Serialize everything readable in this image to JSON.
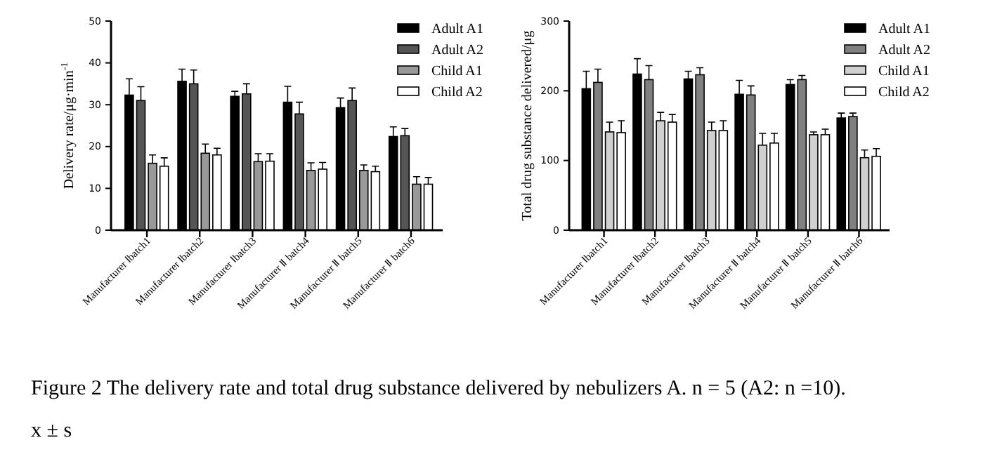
{
  "chart_data": [
    {
      "type": "bar",
      "ylabel": "Delivery rate/μg·min$^{-1}$",
      "categories": [
        "Manufacturer Ⅰbatch1",
        "Manufacturer Ⅰbatch2",
        "Manufacturer Ⅰbatch3",
        "Manufacturer Ⅱ batch4",
        "Manufacturer Ⅱ batch5",
        "Manufacturer Ⅱ batch6"
      ],
      "series": [
        {
          "name": "Adult A1",
          "color": "#000000",
          "values": [
            32.3,
            35.6,
            32,
            30.6,
            29.3,
            22.4
          ],
          "errors": [
            3.9,
            2.9,
            1.2,
            3.8,
            2.3,
            2.3
          ]
        },
        {
          "name": "Adult A2",
          "color": "#555555",
          "values": [
            31,
            35,
            32.6,
            27.8,
            31,
            22.6
          ],
          "errors": [
            3.3,
            3.3,
            2.4,
            2.8,
            3,
            1.7
          ]
        },
        {
          "name": "Child A1",
          "color": "#999999",
          "values": [
            16,
            18.4,
            16.4,
            14.3,
            14.3,
            11
          ],
          "errors": [
            2,
            2.2,
            1.9,
            1.8,
            1.3,
            1.8
          ]
        },
        {
          "name": "Child A2",
          "color": "#ffffff",
          "values": [
            15.3,
            18,
            16.5,
            14.6,
            14,
            11
          ],
          "errors": [
            2,
            1.6,
            1.8,
            1.6,
            1.3,
            1.6
          ]
        }
      ],
      "ylim": [
        0,
        50
      ],
      "yticks": [
        0,
        10,
        20,
        30,
        40,
        50
      ],
      "legend": "top right",
      "annotations": [
        "Figure 2 The delivery rate and total drug substance delivered by nebulizers A. n = 5 (A2: n =10).",
        "x ± s"
      ]
    },
    {
      "type": "bar",
      "ylabel": "Total drug substance delivered/μg",
      "categories": [
        "Manufacturer Ⅰbatch1",
        "Manufacturer Ⅰbatch2",
        "Manufacturer Ⅰbatch3",
        "Manufacturer Ⅱ batch4",
        "Manufacturer Ⅱ batch5",
        "Manufacturer Ⅱ batch6"
      ],
      "series": [
        {
          "name": "Adult A1",
          "color": "#000000",
          "values": [
            203,
            224,
            217,
            195,
            209,
            161
          ],
          "errors": [
            25,
            22,
            11,
            20,
            7,
            7
          ]
        },
        {
          "name": "Adult A2",
          "color": "#808080",
          "values": [
            212,
            216,
            223,
            194,
            216,
            163
          ],
          "errors": [
            19,
            20,
            10,
            13,
            6,
            5
          ]
        },
        {
          "name": "Child A1",
          "color": "#d0d0d0",
          "values": [
            141,
            157,
            143,
            122,
            137,
            104
          ],
          "errors": [
            14,
            12,
            12,
            17,
            4,
            11
          ]
        },
        {
          "name": "Child A2",
          "color": "#ffffff",
          "values": [
            140,
            155,
            143,
            125,
            137,
            106
          ],
          "errors": [
            17,
            11,
            14,
            14,
            8,
            11
          ]
        }
      ],
      "ylim": [
        0,
        300
      ],
      "yticks": [
        0,
        100,
        200,
        300
      ],
      "legend": "top right"
    }
  ]
}
